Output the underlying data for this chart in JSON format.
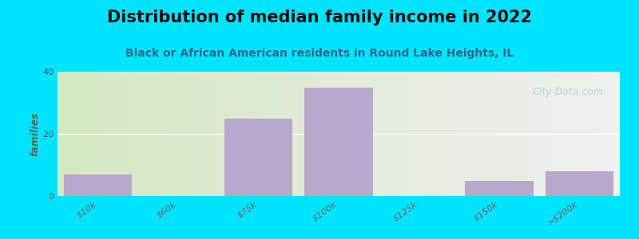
{
  "title": "Distribution of median family income in 2022",
  "subtitle": "Black or African American residents in Round Lake Heights, IL",
  "categories": [
    "$10k",
    "$60k",
    "$75k",
    "$100k",
    "$125k",
    "$150k",
    ">$200k"
  ],
  "values": [
    7,
    0,
    25,
    35,
    0,
    5,
    8
  ],
  "bar_color": "#b8a8cc",
  "background_outer": "#00e5ff",
  "background_inner_left": "#d4e8c2",
  "background_inner_right": "#f0f0f0",
  "ylabel": "families",
  "ylim": [
    0,
    40
  ],
  "yticks": [
    0,
    20,
    40
  ],
  "grid_color": "#ffffff",
  "watermark": "City-Data.com",
  "title_fontsize": 15,
  "subtitle_fontsize": 10,
  "axis_label_fontsize": 9,
  "tick_fontsize": 8,
  "title_color": "#111111",
  "subtitle_color": "#336688",
  "ylabel_color": "#556655"
}
